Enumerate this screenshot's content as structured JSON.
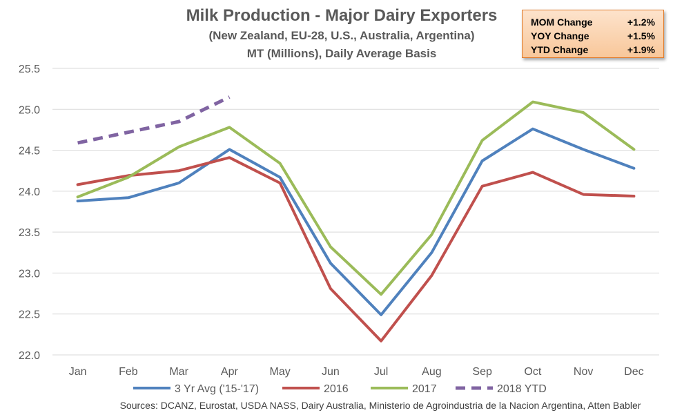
{
  "chart_data": {
    "type": "line",
    "title": "Milk Production - Major Dairy Exporters",
    "subtitle": [
      "(New Zealand, EU-28, U.S., Australia, Argentina)",
      "MT (Millions), Daily Average Basis"
    ],
    "categories": [
      "Jan",
      "Feb",
      "Mar",
      "Apr",
      "May",
      "Jun",
      "Jul",
      "Aug",
      "Sep",
      "Oct",
      "Nov",
      "Dec"
    ],
    "yticks": [
      "22.0",
      "22.5",
      "23.0",
      "23.5",
      "24.0",
      "24.5",
      "25.0",
      "25.5"
    ],
    "ylim": [
      22.0,
      25.5
    ],
    "grid": true,
    "legend_position": "bottom",
    "series": [
      {
        "name": "3 Yr Avg ('15-'17)",
        "color": "#4f81bd",
        "dash": false,
        "values": [
          23.88,
          23.92,
          24.1,
          24.51,
          24.17,
          23.12,
          22.49,
          23.25,
          24.37,
          24.76,
          24.51,
          24.28
        ]
      },
      {
        "name": "2016",
        "color": "#c0504d",
        "dash": false,
        "values": [
          24.08,
          24.19,
          24.25,
          24.41,
          24.1,
          22.81,
          22.17,
          22.97,
          24.06,
          24.23,
          23.96,
          23.94
        ]
      },
      {
        "name": "2017",
        "color": "#9bbb59",
        "dash": false,
        "values": [
          23.93,
          24.17,
          24.54,
          24.78,
          24.34,
          23.32,
          22.74,
          23.47,
          24.62,
          25.09,
          24.96,
          24.51
        ]
      },
      {
        "name": "2018 YTD",
        "color": "#8064a2",
        "dash": true,
        "values": [
          24.59,
          24.72,
          24.85,
          25.15,
          null,
          null,
          null,
          null,
          null,
          null,
          null,
          null
        ]
      }
    ],
    "source": "Sources: DCANZ, Eurostat, USDA NASS, Dairy Australia, Ministerio de Agroindustria de la Nacion Argentina, Atten Babler"
  },
  "stats_box": {
    "rows": [
      {
        "label": "MOM Change",
        "value": "+1.2%"
      },
      {
        "label": "YOY Change",
        "value": "+1.5%"
      },
      {
        "label": "YTD Change",
        "value": "+1.9%"
      }
    ]
  }
}
